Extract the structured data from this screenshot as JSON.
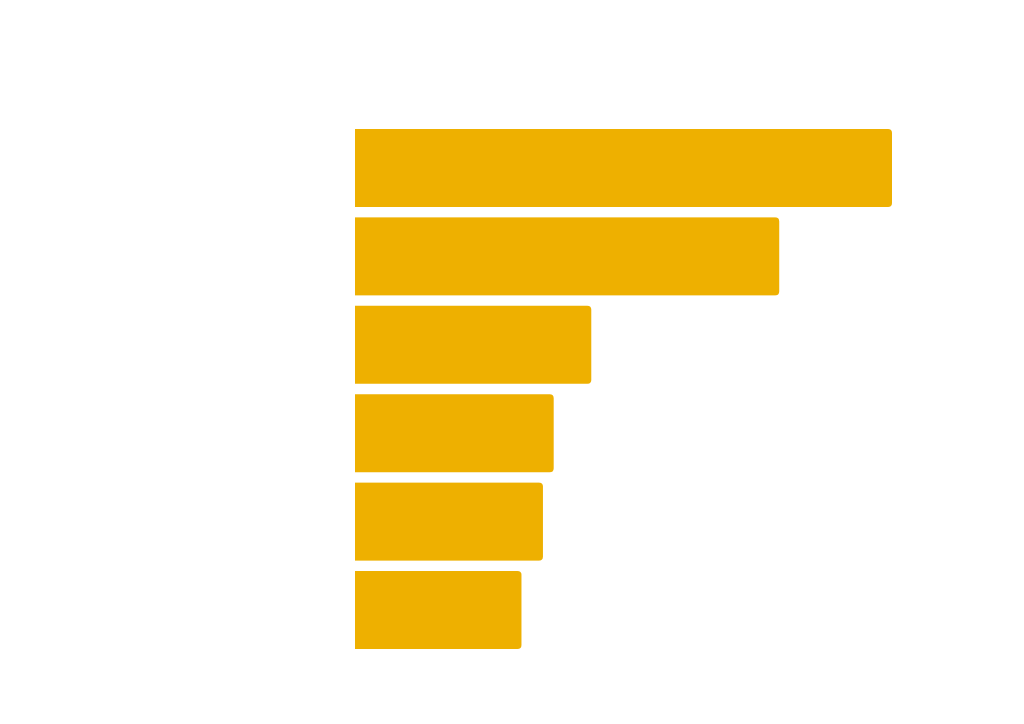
{
  "chart_data": {
    "type": "barh",
    "values": [
      100,
      79,
      44,
      37,
      35,
      31
    ],
    "color": "#eeb000",
    "xlim": [
      0,
      100
    ]
  }
}
